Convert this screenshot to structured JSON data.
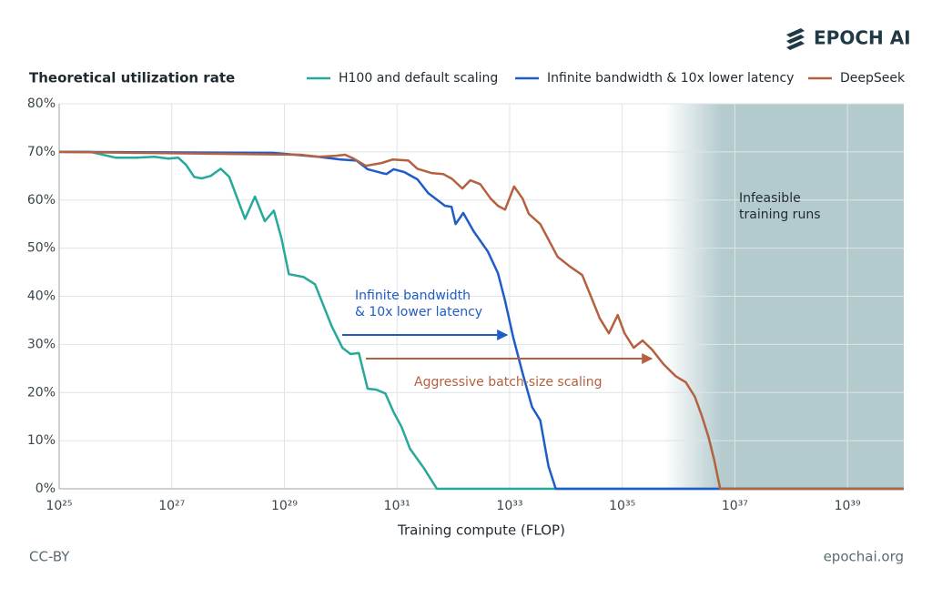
{
  "logo": "EPOCH AI",
  "footer_left": "CC-BY",
  "footer_right": "epochai.org",
  "chart_data": {
    "type": "line",
    "title": "Theoretical utilization rate",
    "x_label": "Training compute (FLOP)",
    "x_scale": "log",
    "grid": true,
    "legend": "top",
    "xlim": [
      1e+25,
      1e+40
    ],
    "xticks": [
      {
        "value": 1e+25,
        "label": "10²⁵"
      },
      {
        "value": 1e+27,
        "label": "10²⁷"
      },
      {
        "value": 1e+29,
        "label": "10²⁹"
      },
      {
        "value": 1e+31,
        "label": "10³¹"
      },
      {
        "value": 1e+33,
        "label": "10³³"
      },
      {
        "value": 1e+35,
        "label": "10³⁵"
      },
      {
        "value": 1e+37,
        "label": "10³⁷"
      },
      {
        "value": 1e+39,
        "label": "10³⁹"
      }
    ],
    "ylim": [
      0,
      80
    ],
    "yticks": [
      {
        "value": 0,
        "label": "0%"
      },
      {
        "value": 10,
        "label": "10%"
      },
      {
        "value": 20,
        "label": "20%"
      },
      {
        "value": 30,
        "label": "30%"
      },
      {
        "value": 40,
        "label": "40%"
      },
      {
        "value": 50,
        "label": "50%"
      },
      {
        "value": 60,
        "label": "60%"
      },
      {
        "value": 70,
        "label": "70%"
      },
      {
        "value": 80,
        "label": "80%"
      }
    ],
    "series": [
      {
        "name": "H100 and default scaling",
        "color": "#26a99a",
        "x": [
          1e+25,
          3.6e+25,
          1e+26,
          2.3e+26,
          4.9e+26,
          8.7e+26,
          1.3e+27,
          1.8e+27,
          2.5e+27,
          3.4e+27,
          4.9e+27,
          7.4e+27,
          1.05e+28,
          2e+28,
          3e+28,
          4.5e+28,
          6.5e+28,
          8.9e+28,
          1.2e+29,
          2.2e+29,
          3.5e+29,
          6.9e+29,
          1.07e+30,
          1.5e+30,
          2.1e+30,
          3e+30,
          4.3e+30,
          6.2e+30,
          8.7e+30,
          1.2e+31,
          1.7e+31,
          3e+31,
          5.1e+31,
          1e+40
        ],
        "values": [
          70,
          70,
          68.8,
          68.8,
          69,
          68.6,
          68.8,
          67.3,
          64.8,
          64.5,
          65,
          66.5,
          64.8,
          56.1,
          60.7,
          55.6,
          57.8,
          52,
          44.6,
          44,
          42.5,
          33.8,
          29.3,
          28,
          28.2,
          20.8,
          20.6,
          19.8,
          15.9,
          12.9,
          8.3,
          4.3,
          0,
          0
        ]
      },
      {
        "name": "Infinite bandwidth & 10x lower latency",
        "color": "#1f5cc6",
        "x": [
          1e+25,
          6.2e+28,
          4e+29,
          1e+30,
          1.9e+30,
          3e+30,
          5.4e+30,
          6.5e+30,
          8.7e+30,
          1.35e+31,
          2.3e+31,
          3.6e+31,
          7.1e+31,
          9.3e+31,
          1.1e+32,
          1.5e+32,
          2.3e+32,
          4.1e+32,
          6.2e+32,
          8.3e+32,
          1.15e+33,
          1.7e+33,
          2.5e+33,
          3.5e+33,
          4.9e+33,
          6.6e+33,
          1e+40
        ],
        "values": [
          70,
          69.8,
          69,
          68.4,
          68.2,
          66.4,
          65.6,
          65.4,
          66.4,
          65.8,
          64.3,
          61.4,
          58.8,
          58.6,
          55,
          57.3,
          53.5,
          49.3,
          44.8,
          39.1,
          31.6,
          24,
          17,
          14.2,
          4.7,
          0,
          0
        ]
      },
      {
        "name": "DeepSeek",
        "color": "#b5603f",
        "x": [
          1e+25,
          1.9e+29,
          4e+29,
          8.3e+29,
          1.2e+30,
          1.7e+30,
          2.8e+30,
          5.4e+30,
          8.3e+30,
          1.6e+31,
          2.3e+31,
          4.1e+31,
          6.6e+31,
          9.5e+31,
          1.45e+32,
          2e+32,
          3e+32,
          4.6e+32,
          6.2e+32,
          8.3e+32,
          1.2e+33,
          1.7e+33,
          2.2e+33,
          3.5e+33,
          7.1e+33,
          1.2e+34,
          1.95e+34,
          2.75e+34,
          4e+34,
          5.8e+34,
          8.3e+34,
          1.1e+35,
          1.6e+35,
          2.3e+35,
          3.4e+35,
          5.4e+35,
          8.9e+35,
          1.35e+36,
          1.95e+36,
          2.6e+36,
          3.4e+36,
          4.3e+36,
          5.5e+36,
          1e+40
        ],
        "values": [
          70,
          69.4,
          69,
          69.2,
          69.4,
          68.6,
          67.1,
          67.7,
          68.4,
          68.2,
          66.5,
          65.6,
          65.4,
          64.4,
          62.4,
          64.1,
          63.3,
          60.3,
          58.8,
          58,
          62.8,
          60.3,
          57.1,
          55,
          48.2,
          46.1,
          44.4,
          40.1,
          35.4,
          32.3,
          36.1,
          32.3,
          29.3,
          30.8,
          28.9,
          25.9,
          23.4,
          22.1,
          19.1,
          15.1,
          10.8,
          6,
          0,
          0
        ]
      }
    ],
    "annotations": [
      {
        "text": [
          "Infinite bandwidth",
          "& 10x lower latency"
        ],
        "color": "#1f5cc6"
      },
      {
        "text": [
          "Aggressive batch-size scaling"
        ],
        "color": "#b5603f"
      },
      {
        "text": [
          "Infeasible",
          "training runs"
        ],
        "color": "#1f2a30"
      }
    ]
  }
}
